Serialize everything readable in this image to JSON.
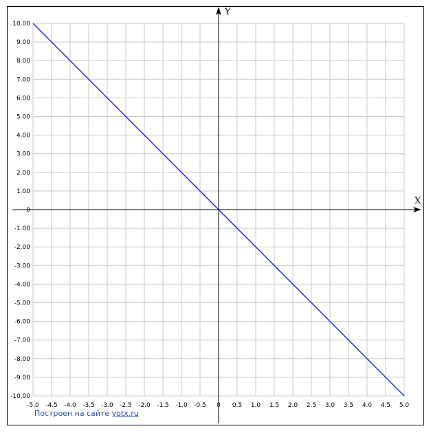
{
  "chart_data": {
    "type": "line",
    "title": "",
    "xlabel": "X",
    "ylabel": "Y",
    "xlim": [
      -5,
      5
    ],
    "ylim": [
      -10,
      10
    ],
    "grid": true,
    "x_ticks": [
      "-5.0",
      "-4.5",
      "-4.0",
      "-3.5",
      "-3.0",
      "-2.5",
      "-2.0",
      "-1.5",
      "-1.0",
      "-0.5",
      "0",
      "0.5",
      "1.0",
      "1.5",
      "2.0",
      "2.5",
      "3.0",
      "3.5",
      "4.0",
      "4.5",
      "5.0"
    ],
    "y_ticks": [
      "10.00",
      "9.00",
      "8.00",
      "7.00",
      "6.00",
      "5.00",
      "4.00",
      "3.00",
      "2.00",
      "1.00",
      "0",
      "-1.00",
      "-2.00",
      "-3.00",
      "-4.00",
      "-5.00",
      "-6.00",
      "-7.00",
      "-8.00",
      "-9.00",
      "-10.00"
    ],
    "series": [
      {
        "x": [
          -5,
          5
        ],
        "y": [
          10,
          -10
        ]
      }
    ]
  },
  "colors": {
    "line": "#2233cc",
    "grid": "#c8c8c8",
    "axis": "#000000",
    "credit": "#2b4f9e"
  },
  "credit": {
    "text": "Построен на сайте",
    "link": "yotx.ru"
  }
}
